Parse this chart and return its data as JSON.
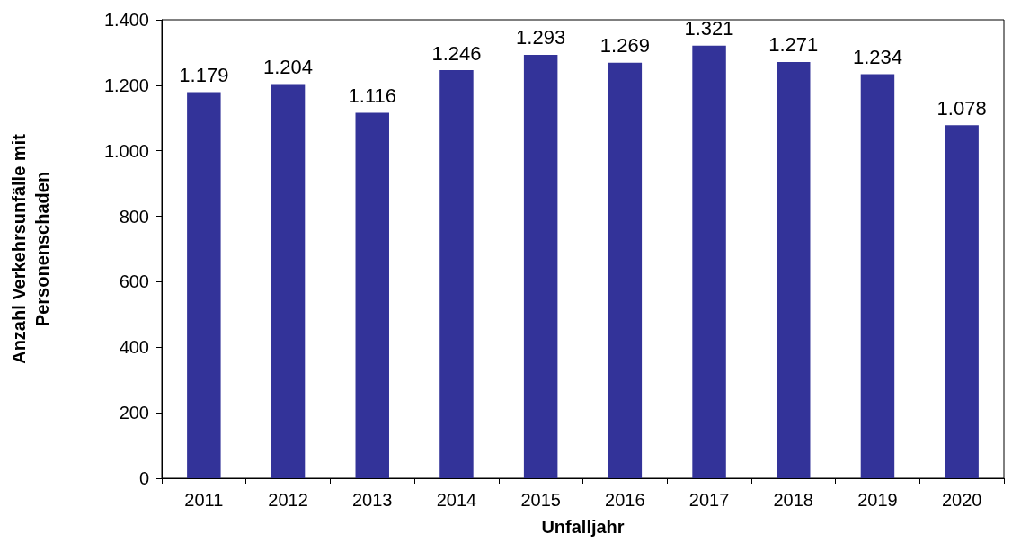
{
  "chart_data": {
    "type": "bar",
    "xlabel": "Unfalljahr",
    "ylabel": "Anzahl Verkehrsunfälle mit\nPersonenschaden",
    "categories": [
      "2011",
      "2012",
      "2013",
      "2014",
      "2015",
      "2016",
      "2017",
      "2018",
      "2019",
      "2020"
    ],
    "values": [
      1179,
      1204,
      1116,
      1246,
      1293,
      1269,
      1321,
      1271,
      1234,
      1078
    ],
    "value_labels": [
      "1.179",
      "1.204",
      "1.116",
      "1.246",
      "1.293",
      "1.269",
      "1.321",
      "1.271",
      "1.234",
      "1.078"
    ],
    "color": "#333399",
    "ylim": [
      0,
      1400
    ],
    "yticks": [
      0,
      200,
      400,
      600,
      800,
      {
        "value": 1000,
        "label": "1.000"
      },
      {
        "value": 1200,
        "label": "1.200"
      },
      {
        "value": 1400,
        "label": "1.400"
      }
    ],
    "grid": false
  }
}
